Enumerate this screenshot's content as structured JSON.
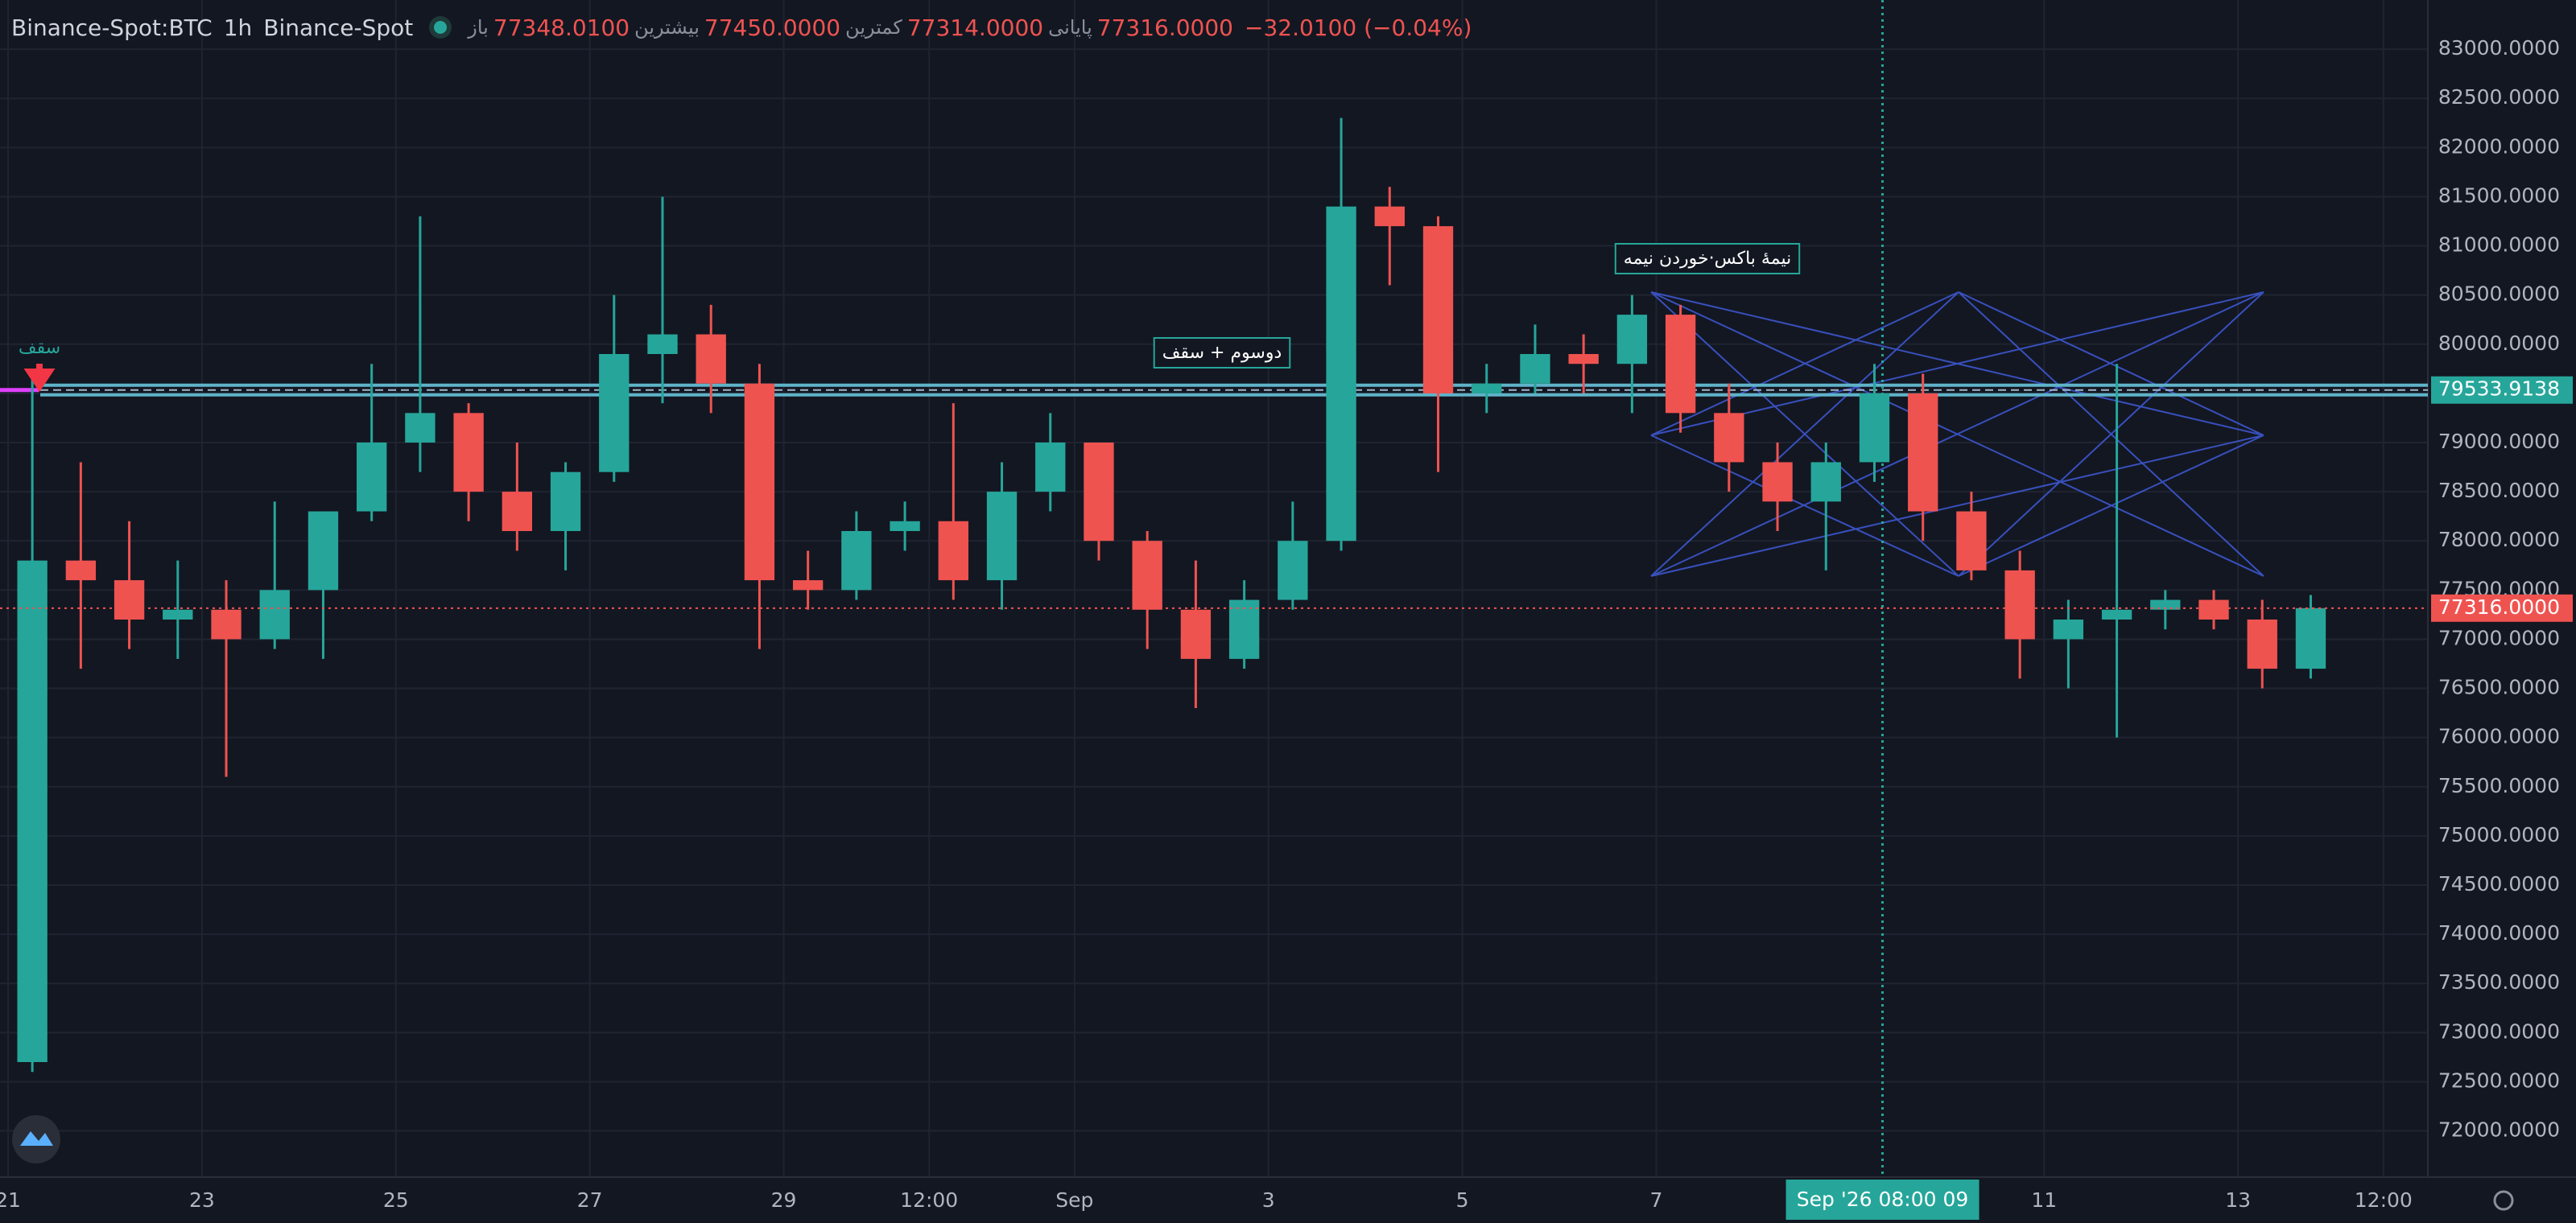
{
  "chart_data": {
    "type": "candlestick",
    "title": "Binance-Spot:BTC",
    "interval": "1h",
    "exchange": "Binance-Spot",
    "ohlc_header": [
      {
        "label": "باز",
        "value": "77348.0100"
      },
      {
        "label": "بیشترین",
        "value": "77450.0000"
      },
      {
        "label": "کمترین",
        "value": "77314.0000"
      },
      {
        "label": "پایانی",
        "value": "77316.0000"
      }
    ],
    "change": "−32.0100 (−0.04%)",
    "x": [
      6,
      18,
      30,
      42,
      54,
      66,
      78,
      90,
      102,
      114,
      126,
      138,
      150,
      162,
      174,
      186,
      198,
      210,
      222,
      234,
      246,
      258,
      270,
      282,
      294,
      306,
      318,
      330,
      342,
      354,
      366,
      378,
      390,
      402,
      414,
      426,
      438,
      450,
      462,
      474,
      486,
      498,
      510,
      522,
      534,
      546,
      558,
      570
    ],
    "open": [
      72700,
      77800,
      77600,
      77200,
      77300,
      77000,
      77500,
      78300,
      79000,
      79300,
      78500,
      78100,
      78700,
      79900,
      80100,
      79600,
      77600,
      77500,
      78100,
      78200,
      77600,
      78500,
      79000,
      78000,
      77300,
      76800,
      77400,
      78000,
      81400,
      81200,
      79500,
      79600,
      79900,
      79800,
      80300,
      79300,
      78800,
      78400,
      78800,
      79500,
      78300,
      77700,
      77000,
      77200,
      77300,
      77400,
      77200,
      76700
    ],
    "high": [
      79700,
      78800,
      78200,
      77800,
      77600,
      78400,
      78200,
      79800,
      81300,
      79400,
      79000,
      78800,
      80500,
      81500,
      80400,
      79800,
      77900,
      78300,
      78400,
      79400,
      78800,
      79300,
      79000,
      78100,
      77800,
      77600,
      78400,
      82300,
      81600,
      81300,
      79800,
      80200,
      80100,
      80500,
      80400,
      79600,
      79000,
      79000,
      79800,
      79700,
      78500,
      77900,
      77400,
      79800,
      77500,
      77500,
      77400,
      77450
    ],
    "low": [
      72600,
      76700,
      76900,
      76800,
      75600,
      76900,
      76800,
      78200,
      78700,
      78200,
      77900,
      77700,
      78600,
      79400,
      79300,
      76900,
      77300,
      77400,
      77900,
      77400,
      77300,
      78300,
      77800,
      76900,
      76300,
      76700,
      77300,
      77900,
      80600,
      78700,
      79300,
      79500,
      79500,
      79300,
      79100,
      78500,
      78100,
      77700,
      78600,
      78000,
      77600,
      76600,
      76500,
      76000,
      77100,
      77100,
      76500,
      76600
    ],
    "close": [
      77800,
      77600,
      77200,
      77300,
      77000,
      77500,
      78300,
      79000,
      79300,
      78500,
      78100,
      78700,
      79900,
      80100,
      79600,
      77600,
      77500,
      78100,
      78200,
      77600,
      78500,
      79000,
      78000,
      77300,
      76800,
      77400,
      78000,
      81400,
      81200,
      79500,
      79600,
      79900,
      79800,
      80300,
      79300,
      78800,
      78400,
      78800,
      79500,
      78300,
      77700,
      77000,
      77200,
      77300,
      77400,
      77200,
      76700,
      77316
    ],
    "up_color": "#26a69a",
    "down_color": "#ef5350",
    "xlim": [
      -2,
      599
    ],
    "xticks": [
      {
        "value": 0,
        "label": "21"
      },
      {
        "value": 48,
        "label": "23"
      },
      {
        "value": 96,
        "label": "25"
      },
      {
        "value": 144,
        "label": "27"
      },
      {
        "value": 192,
        "label": "29"
      },
      {
        "value": 228,
        "label": "12:00"
      },
      {
        "value": 264,
        "label": "Sep"
      },
      {
        "value": 312,
        "label": "3"
      },
      {
        "value": 360,
        "label": "5"
      },
      {
        "value": 408,
        "label": "7"
      },
      {
        "value": 504,
        "label": "11"
      },
      {
        "value": 552,
        "label": "13"
      },
      {
        "value": 588,
        "label": "12:00"
      }
    ],
    "ylim": [
      71530,
      83500
    ],
    "yticks": [
      {
        "value": 72000,
        "label": "72000.0000"
      },
      {
        "value": 72500,
        "label": "72500.0000"
      },
      {
        "value": 73000,
        "label": "73000.0000"
      },
      {
        "value": 73500,
        "label": "73500.0000"
      },
      {
        "value": 74000,
        "label": "74000.0000"
      },
      {
        "value": 74500,
        "label": "74500.0000"
      },
      {
        "value": 75000,
        "label": "75000.0000"
      },
      {
        "value": 75500,
        "label": "75500.0000"
      },
      {
        "value": 76000,
        "label": "76000.0000"
      },
      {
        "value": 76500,
        "label": "76500.0000"
      },
      {
        "value": 77000,
        "label": "77000.0000"
      },
      {
        "value": 77500,
        "label": "77500.0000"
      },
      {
        "value": 78000,
        "label": "78000.0000"
      },
      {
        "value": 78500,
        "label": "78500.0000"
      },
      {
        "value": 79000,
        "label": "79000.0000"
      },
      {
        "value": 79500,
        "label": "79500.0000"
      },
      {
        "value": 80000,
        "label": "80000.0000"
      },
      {
        "value": 80500,
        "label": "80500.0000"
      },
      {
        "value": 81000,
        "label": "81000.0000"
      },
      {
        "value": 81500,
        "label": "81500.0000"
      },
      {
        "value": 82000,
        "label": "82000.0000"
      },
      {
        "value": 82500,
        "label": "82500.0000"
      },
      {
        "value": 83000,
        "label": "83000.0000"
      }
    ],
    "grid": true,
    "level": {
      "value": 79533.9138,
      "label": "79533.9138",
      "color": "#5fb3c9"
    },
    "last_price": {
      "value": 77316,
      "label": "77316.0000",
      "color": "#ef5350"
    },
    "crosshair": {
      "value": 464,
      "label": "Sep '26  08:00 09"
    },
    "annotations": [
      "سقف",
      "دوسوم + سقف",
      "نیمهٔ باکس·خوردن نیمه"
    ]
  }
}
